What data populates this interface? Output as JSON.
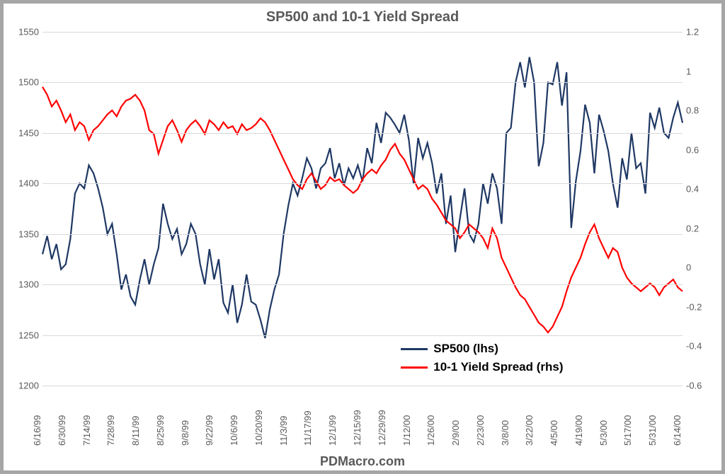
{
  "chart": {
    "type": "line-dual-axis",
    "title": "SP500 and 10-1 Yield Spread",
    "title_fontsize": 20,
    "title_color": "#595959",
    "footer": "PDMacro.com",
    "footer_fontsize": 18,
    "border_color": "#a6a6a6",
    "border_width": 5,
    "background_color": "#ffffff",
    "grid_color": "#d9d9d9",
    "label_fontsize": 13,
    "label_color": "#595959",
    "line_width": 2.2,
    "left_axis": {
      "min": 1200,
      "max": 1550,
      "ticks": [
        1200,
        1250,
        1300,
        1350,
        1400,
        1450,
        1500,
        1550
      ]
    },
    "right_axis": {
      "min": -0.6,
      "max": 1.2,
      "ticks": [
        -0.6,
        -0.4,
        -0.2,
        0,
        0.2,
        0.4,
        0.6,
        0.8,
        1,
        1.2
      ]
    },
    "x_labels": [
      "6/16/99",
      "6/30/99",
      "7/14/99",
      "7/28/99",
      "8/11/99",
      "8/25/99",
      "9/8/99",
      "9/22/99",
      "10/6/99",
      "10/20/99",
      "11/3/99",
      "11/17/99",
      "12/1/99",
      "12/15/99",
      "12/29/99",
      "1/12/00",
      "1/26/00",
      "2/9/00",
      "2/23/00",
      "3/8/00",
      "3/22/00",
      "4/5/00",
      "4/19/00",
      "5/3/00",
      "5/17/00",
      "5/31/00",
      "6/14/00"
    ],
    "series1": {
      "name": "SP500 (lhs)",
      "color": "#1f3864",
      "axis": "left",
      "values": [
        1330,
        1348,
        1325,
        1340,
        1315,
        1320,
        1345,
        1390,
        1400,
        1395,
        1418,
        1410,
        1395,
        1376,
        1350,
        1360,
        1330,
        1295,
        1310,
        1288,
        1280,
        1305,
        1325,
        1300,
        1320,
        1336,
        1380,
        1360,
        1345,
        1355,
        1330,
        1340,
        1360,
        1350,
        1320,
        1300,
        1335,
        1305,
        1325,
        1282,
        1272,
        1300,
        1262,
        1280,
        1310,
        1283,
        1280,
        1265,
        1247,
        1275,
        1295,
        1310,
        1350,
        1378,
        1400,
        1388,
        1405,
        1425,
        1415,
        1395,
        1415,
        1420,
        1435,
        1405,
        1420,
        1398,
        1415,
        1405,
        1418,
        1402,
        1435,
        1420,
        1460,
        1440,
        1470,
        1465,
        1458,
        1450,
        1468,
        1443,
        1400,
        1445,
        1425,
        1440,
        1420,
        1390,
        1410,
        1360,
        1388,
        1332,
        1365,
        1395,
        1350,
        1342,
        1360,
        1400,
        1380,
        1410,
        1395,
        1360,
        1450,
        1455,
        1500,
        1520,
        1495,
        1525,
        1500,
        1417,
        1440,
        1500,
        1498,
        1520,
        1477,
        1510,
        1356,
        1402,
        1432,
        1478,
        1460,
        1410,
        1468,
        1452,
        1432,
        1400,
        1376,
        1425,
        1404,
        1450,
        1415,
        1420,
        1390,
        1470,
        1455,
        1475,
        1450,
        1445,
        1465,
        1480,
        1460
      ]
    },
    "series2": {
      "name": "10-1 Yield Spread (rhs)",
      "color": "#ff0000",
      "axis": "right",
      "values": [
        0.92,
        0.88,
        0.82,
        0.85,
        0.8,
        0.74,
        0.78,
        0.7,
        0.74,
        0.72,
        0.65,
        0.7,
        0.72,
        0.75,
        0.78,
        0.8,
        0.77,
        0.82,
        0.85,
        0.86,
        0.88,
        0.85,
        0.8,
        0.7,
        0.68,
        0.58,
        0.65,
        0.72,
        0.75,
        0.7,
        0.64,
        0.7,
        0.73,
        0.75,
        0.72,
        0.68,
        0.75,
        0.73,
        0.7,
        0.74,
        0.71,
        0.72,
        0.68,
        0.73,
        0.7,
        0.71,
        0.73,
        0.76,
        0.74,
        0.7,
        0.65,
        0.6,
        0.55,
        0.5,
        0.45,
        0.42,
        0.4,
        0.45,
        0.48,
        0.44,
        0.4,
        0.42,
        0.46,
        0.44,
        0.45,
        0.42,
        0.4,
        0.38,
        0.4,
        0.45,
        0.48,
        0.5,
        0.48,
        0.52,
        0.55,
        0.6,
        0.63,
        0.58,
        0.55,
        0.5,
        0.45,
        0.4,
        0.42,
        0.4,
        0.35,
        0.32,
        0.28,
        0.24,
        0.22,
        0.2,
        0.15,
        0.18,
        0.22,
        0.2,
        0.18,
        0.15,
        0.1,
        0.2,
        0.15,
        0.05,
        0.0,
        -0.05,
        -0.1,
        -0.14,
        -0.16,
        -0.2,
        -0.24,
        -0.28,
        -0.3,
        -0.33,
        -0.3,
        -0.25,
        -0.2,
        -0.12,
        -0.05,
        0.0,
        0.05,
        0.12,
        0.18,
        0.22,
        0.15,
        0.1,
        0.05,
        0.1,
        0.08,
        0.0,
        -0.05,
        -0.08,
        -0.1,
        -0.12,
        -0.1,
        -0.08,
        -0.1,
        -0.14,
        -0.1,
        -0.08,
        -0.06,
        -0.1,
        -0.12
      ]
    },
    "legend": {
      "position": "inside-bottom-right",
      "fontsize": 17,
      "items": [
        {
          "label": "SP500 (lhs)",
          "color": "#1f3864"
        },
        {
          "label": "10-1 Yield Spread (rhs)",
          "color": "#ff0000"
        }
      ]
    }
  }
}
